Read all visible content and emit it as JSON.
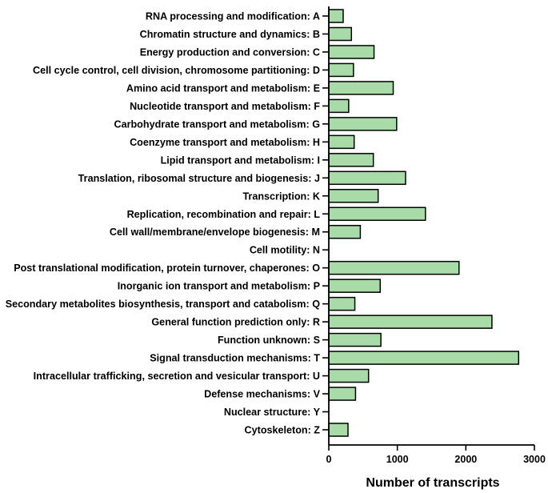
{
  "chart_data": {
    "type": "bar",
    "orientation": "horizontal",
    "categories": [
      "RNA processing and modification: A",
      "Chromatin structure and dynamics: B",
      "Energy production and conversion: C",
      "Cell cycle control, cell division, chromosome partitioning: D",
      "Amino acid transport and metabolism: E",
      "Nucleotide transport and metabolism: F",
      "Carbohydrate transport and metabolism: G",
      "Coenzyme transport and metabolism: H",
      "Lipid transport and metabolism: I",
      "Translation, ribosomal structure and biogenesis: J",
      "Transcription: K",
      "Replication, recombination and repair: L",
      "Cell wall/membrane/envelope biogenesis: M",
      "Cell motility: N",
      "Post translational modification, protein turnover, chaperones: O",
      "Inorganic ion transport and metabolism: P",
      "Secondary metabolites biosynthesis, transport and catabolism: Q",
      "General function prediction only: R",
      "Function unknown: S",
      "Signal transduction mechanisms: T",
      "Intracellular trafficking, secretion and vesicular transport: U",
      "Defense mechanisms: V",
      "Nuclear structure: Y",
      "Cytoskeleton: Z"
    ],
    "values": [
      210,
      330,
      660,
      360,
      940,
      290,
      990,
      370,
      650,
      1120,
      720,
      1410,
      460,
      0,
      1900,
      750,
      380,
      2380,
      760,
      2770,
      580,
      390,
      0,
      280
    ],
    "xlabel": "Number of transcripts",
    "ylabel": "",
    "title": "",
    "xlim": [
      0,
      3000
    ],
    "xticks": [
      0,
      1000,
      2000,
      3000
    ],
    "grid": false,
    "legend": "none",
    "bar_color": "#a8dba8",
    "bar_edge_color": "#000000"
  }
}
